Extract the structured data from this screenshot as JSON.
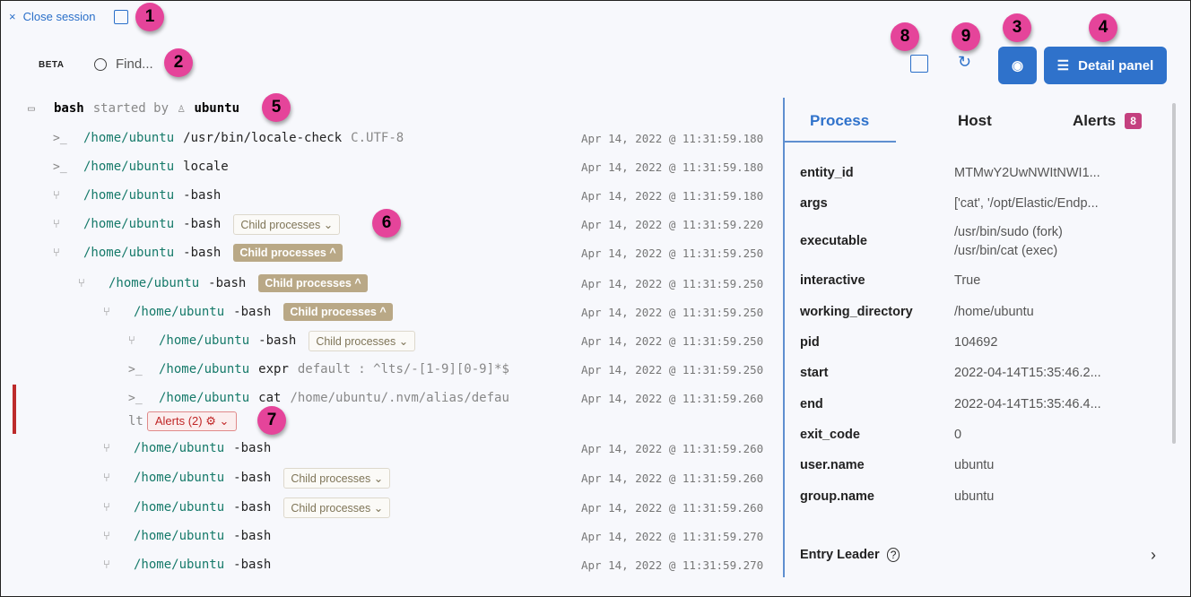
{
  "header": {
    "close_label": "Close session",
    "close_icon": "×",
    "beta": "BETA",
    "search_placeholder": "Find...",
    "detail_panel_label": "Detail panel"
  },
  "callouts": [
    "1",
    "2",
    "3",
    "4",
    "5",
    "6",
    "7",
    "8",
    "9"
  ],
  "session": {
    "name": "bash",
    "started_by": "started by",
    "user": "ubuntu"
  },
  "rows": [
    {
      "icon": "terminal",
      "path": "/home/ubuntu",
      "cmd": "/usr/bin/locale-check",
      "args": "C.UTF-8",
      "ts": "Apr 14, 2022 @ 11:31:59.180"
    },
    {
      "icon": "terminal",
      "path": "/home/ubuntu",
      "cmd": "locale",
      "args": "",
      "ts": "Apr 14, 2022 @ 11:31:59.180"
    },
    {
      "icon": "fork",
      "path": "/home/ubuntu",
      "cmd": "-bash",
      "args": "",
      "ts": "Apr 14, 2022 @ 11:31:59.180"
    },
    {
      "icon": "fork",
      "path": "/home/ubuntu",
      "cmd": "-bash",
      "args": "",
      "chip": "Child processes ⌄",
      "ts": "Apr 14, 2022 @ 11:31:59.220"
    },
    {
      "icon": "fork",
      "path": "/home/ubuntu",
      "cmd": "-bash",
      "args": "",
      "chip": "Child processes ^",
      "ts": "Apr 14, 2022 @ 11:31:59.250"
    },
    {
      "icon": "fork",
      "path": "/home/ubuntu",
      "cmd": "-bash",
      "args": "",
      "chip": "Child processes ^",
      "ts": "Apr 14, 2022 @ 11:31:59.250"
    },
    {
      "icon": "fork",
      "path": "/home/ubuntu",
      "cmd": "-bash",
      "args": "",
      "chip": "Child processes ^",
      "ts": "Apr 14, 2022 @ 11:31:59.250"
    },
    {
      "icon": "fork",
      "path": "/home/ubuntu",
      "cmd": "-bash",
      "args": "",
      "chip": "Child processes ⌄",
      "ts": "Apr 14, 2022 @ 11:31:59.250"
    },
    {
      "icon": "terminal",
      "path": "/home/ubuntu",
      "cmd": "expr",
      "args": "default : ^lts/-[1-9][0-9]*$",
      "ts": "Apr 14, 2022 @ 11:31:59.250"
    },
    {
      "icon": "terminal",
      "path": "/home/ubuntu",
      "cmd": "cat",
      "args": "/home/ubuntu/.nvm/alias/defau",
      "args_wrap": "lt",
      "alerts": "Alerts (2)",
      "ts": "Apr 14, 2022 @ 11:31:59.260"
    },
    {
      "icon": "fork",
      "path": "/home/ubuntu",
      "cmd": "-bash",
      "args": "",
      "ts": "Apr 14, 2022 @ 11:31:59.260"
    },
    {
      "icon": "fork",
      "path": "/home/ubuntu",
      "cmd": "-bash",
      "args": "",
      "chip": "Child processes ⌄",
      "ts": "Apr 14, 2022 @ 11:31:59.260"
    },
    {
      "icon": "fork",
      "path": "/home/ubuntu",
      "cmd": "-bash",
      "args": "",
      "chip": "Child processes ⌄",
      "ts": "Apr 14, 2022 @ 11:31:59.260"
    },
    {
      "icon": "fork",
      "path": "/home/ubuntu",
      "cmd": "-bash",
      "args": "",
      "ts": "Apr 14, 2022 @ 11:31:59.270"
    },
    {
      "icon": "fork",
      "path": "/home/ubuntu",
      "cmd": "-bash",
      "args": "",
      "ts": "Apr 14, 2022 @ 11:31:59.270"
    }
  ],
  "detail": {
    "tabs": [
      "Process",
      "Host",
      "Alerts"
    ],
    "active_tab": "Process",
    "alerts_count": "8",
    "fields": [
      {
        "k": "entity_id",
        "v": "MTMwY2UwNWItNWI1..."
      },
      {
        "k": "args",
        "v": "['cat', '/opt/Elastic/Endp..."
      },
      {
        "k": "executable",
        "v": "/usr/bin/sudo (fork)",
        "v2": "/usr/bin/cat (exec)"
      },
      {
        "k": "interactive",
        "v": "True"
      },
      {
        "k": "working_directory",
        "v": "/home/ubuntu"
      },
      {
        "k": "pid",
        "v": "104692"
      },
      {
        "k": "start",
        "v": "2022-04-14T15:35:46.2..."
      },
      {
        "k": "end",
        "v": "2022-04-14T15:35:46.4..."
      },
      {
        "k": "exit_code",
        "v": "0"
      },
      {
        "k": "user.name",
        "v": "ubuntu"
      },
      {
        "k": "group.name",
        "v": "ubuntu"
      }
    ],
    "entry_leader": "Entry Leader"
  },
  "colors": {
    "accent": "#2f72cb",
    "path": "#167a6a",
    "chip_open": "#b9a886",
    "alert": "#c02525",
    "callout": "#e5449a"
  }
}
